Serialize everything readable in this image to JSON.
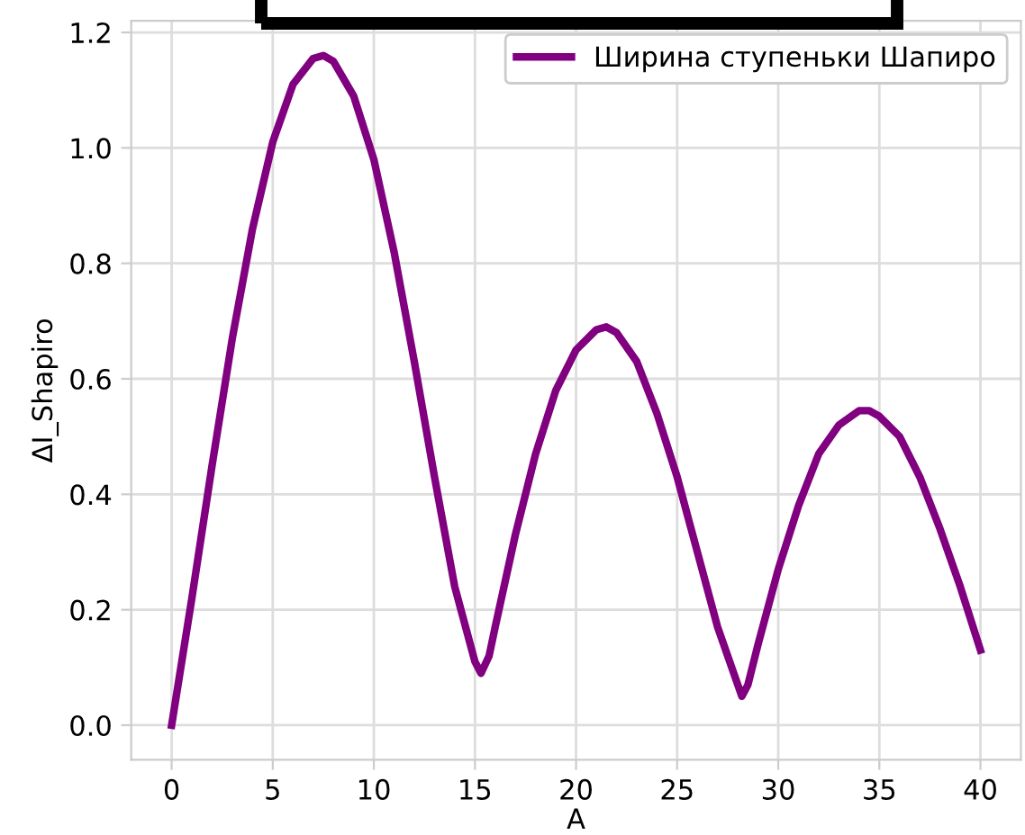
{
  "chart_data": {
    "type": "line",
    "xlabel": "A",
    "ylabel": "ΔI_Shapiro",
    "xlim": [
      -2,
      42
    ],
    "ylim": [
      -0.06,
      1.22
    ],
    "xticks": [
      0,
      5,
      10,
      15,
      20,
      25,
      30,
      35,
      40
    ],
    "yticks": [
      {
        "value": 0,
        "label": "0.0"
      },
      {
        "value": 0.2,
        "label": "0.2"
      },
      {
        "value": 0.4,
        "label": "0.4"
      },
      {
        "value": 0.6,
        "label": "0.6"
      },
      {
        "value": 0.8,
        "label": "0.8"
      },
      {
        "value": 1.0,
        "label": "1.0"
      },
      {
        "value": 1.2,
        "label": "1.2"
      }
    ],
    "grid": true,
    "legend": "top right",
    "line_style": "solid",
    "marker": "none",
    "x": [
      0,
      1,
      2,
      3,
      4,
      5,
      6,
      7,
      7.5,
      8,
      9,
      10,
      11,
      12,
      13,
      14,
      15,
      15.3,
      15.7,
      16,
      17,
      18,
      19,
      20,
      21,
      21.5,
      22,
      23,
      24,
      25,
      26,
      27,
      28,
      28.2,
      28.5,
      29,
      30,
      31,
      32,
      33,
      34,
      34.5,
      35,
      36,
      37,
      38,
      39,
      40
    ],
    "series": [
      {
        "name": "Ширина ступеньки Шапиро",
        "color": "#800080",
        "values": [
          0,
          0.22,
          0.45,
          0.67,
          0.86,
          1.01,
          1.11,
          1.155,
          1.16,
          1.15,
          1.09,
          0.98,
          0.82,
          0.63,
          0.43,
          0.24,
          0.11,
          0.09,
          0.12,
          0.17,
          0.33,
          0.47,
          0.58,
          0.65,
          0.685,
          0.69,
          0.68,
          0.63,
          0.54,
          0.43,
          0.3,
          0.17,
          0.07,
          0.05,
          0.07,
          0.14,
          0.27,
          0.38,
          0.47,
          0.52,
          0.545,
          0.545,
          0.535,
          0.5,
          0.43,
          0.34,
          0.24,
          0.13
        ]
      }
    ]
  }
}
